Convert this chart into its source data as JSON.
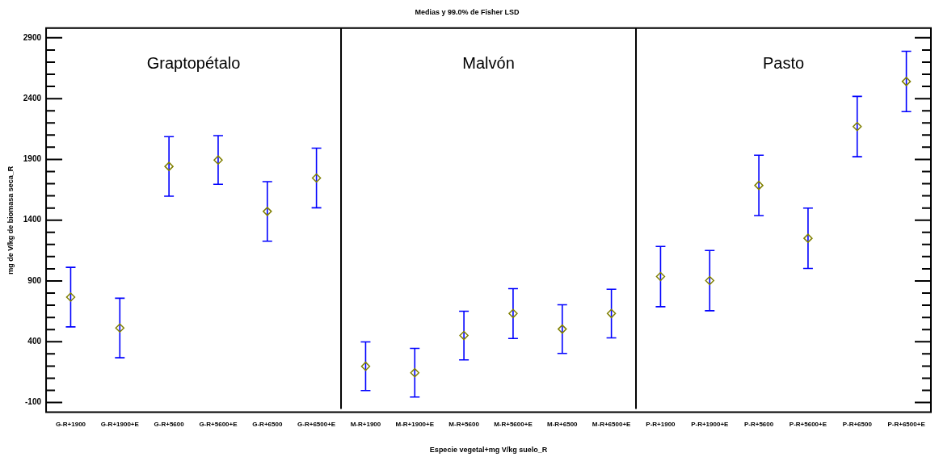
{
  "chart_data": {
    "type": "scatter",
    "title": "Medias y 99.0% de Fisher LSD",
    "xlabel": "Especie vegetal+mg V/kg suelo_R",
    "ylabel": "mg de V/kg de biomasa seca_R",
    "categories": [
      "G-R+1900",
      "G-R+1900+E",
      "G-R+5600",
      "G-R+5600+E",
      "G-R+6500",
      "G-R+6500+E",
      "M-R+1900",
      "M-R+1900+E",
      "M-R+5600",
      "M-R+5600+E",
      "M-R+6500",
      "M-R+6500+E",
      "P-R+1900",
      "P-R+1900+E",
      "P-R+5600",
      "P-R+5600+E",
      "P-R+6500",
      "P-R+6500+E"
    ],
    "series": [
      {
        "color": "#808000",
        "values": [
          767,
          513,
          1842,
          1895,
          1472,
          1747,
          198,
          145,
          451,
          632,
          504,
          632,
          936,
          903,
          1686,
          1251,
          2170,
          2541
        ],
        "errors": [
          245,
          245,
          245,
          200,
          245,
          245,
          200,
          200,
          200,
          205,
          200,
          200,
          248,
          248,
          248,
          248,
          248,
          248
        ]
      }
    ],
    "marker": "diamond",
    "legend": false,
    "grid": false,
    "ylim": [
      -180,
      2980
    ],
    "yticks": [
      -100,
      {
        "value": 0,
        "label": null
      },
      {
        "value": 100,
        "label": null
      },
      {
        "value": 200,
        "label": null
      },
      {
        "value": 300,
        "label": null
      },
      400,
      {
        "value": 500,
        "label": null
      },
      {
        "value": 600,
        "label": null
      },
      {
        "value": 700,
        "label": null
      },
      {
        "value": 800,
        "label": null
      },
      900,
      {
        "value": 1000,
        "label": null
      },
      {
        "value": 1100,
        "label": null
      },
      {
        "value": 1200,
        "label": null
      },
      {
        "value": 1300,
        "label": null
      },
      1400,
      {
        "value": 1500,
        "label": null
      },
      {
        "value": 1600,
        "label": null
      },
      {
        "value": 1700,
        "label": null
      },
      {
        "value": 1800,
        "label": null
      },
      1900,
      {
        "value": 2000,
        "label": null
      },
      {
        "value": 2100,
        "label": null
      },
      {
        "value": 2200,
        "label": null
      },
      {
        "value": 2300,
        "label": null
      },
      2400,
      {
        "value": 2500,
        "label": null
      },
      {
        "value": 2600,
        "label": null
      },
      {
        "value": 2700,
        "label": null
      },
      {
        "value": 2800,
        "label": null
      },
      2900
    ],
    "annotations": [
      "Graptopétalo",
      "Malvón",
      "Pasto"
    ]
  }
}
